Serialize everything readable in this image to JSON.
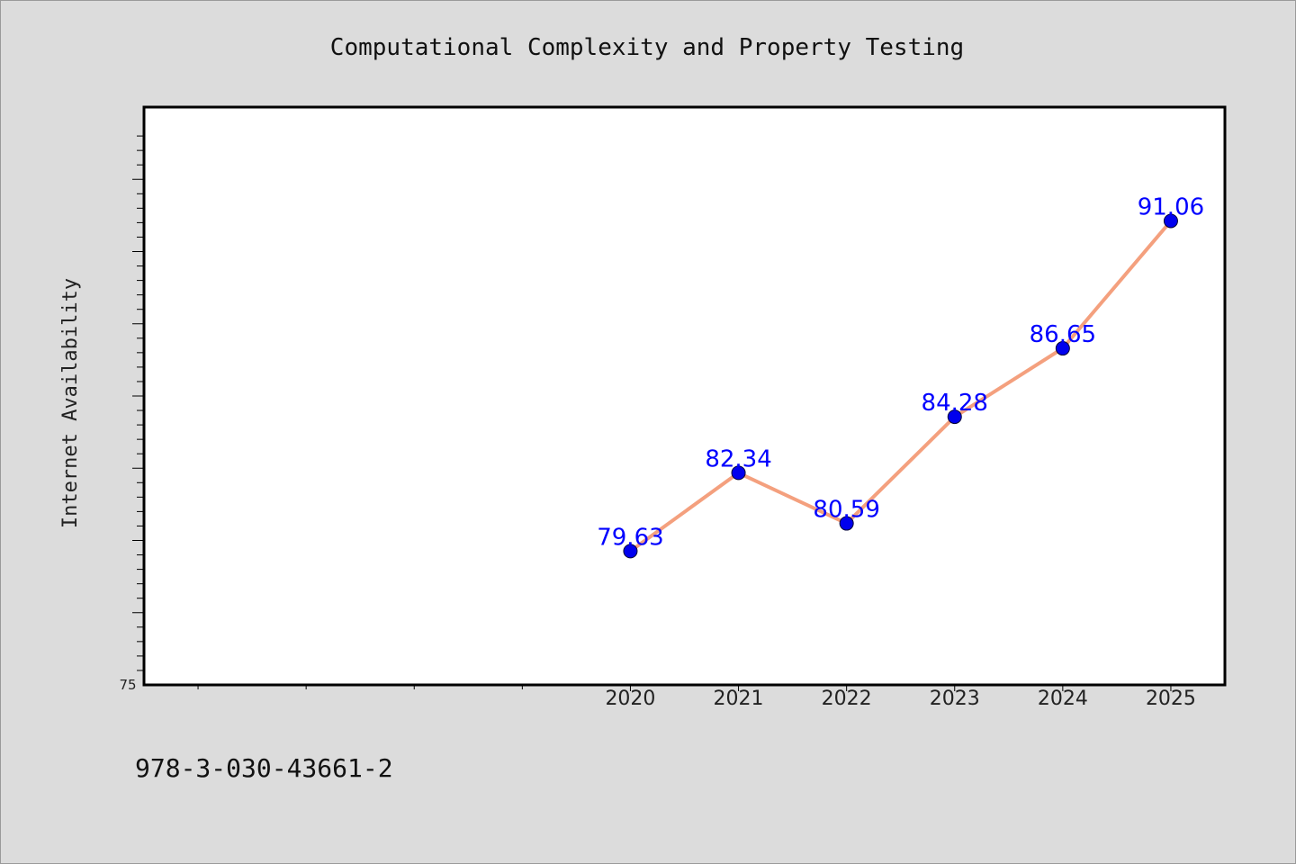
{
  "chart_data": {
    "type": "line",
    "title": "Computational Complexity and Property Testing",
    "xlabel": "",
    "ylabel": "Internet Availability",
    "categories": [
      "2020",
      "2021",
      "2022",
      "2023",
      "2024",
      "2025"
    ],
    "series": [
      {
        "values": [
          79.63,
          82.34,
          80.59,
          84.28,
          86.65,
          91.06
        ]
      }
    ],
    "data_labels": [
      "79.63",
      "82.34",
      "80.59",
      "84.28",
      "86.65",
      "91.06"
    ],
    "ylim": [
      75,
      95
    ],
    "y_tick_labels": [
      "75"
    ],
    "x_slots": 10,
    "grid": false,
    "legend": "none",
    "colors": {
      "line": "#f4a07e",
      "marker": "#0000ee",
      "data_label": "#0000ff",
      "plot_background": "#ffffff",
      "page_background": "#dcdcdc"
    }
  },
  "footer": {
    "isbn": "978-3-030-43661-2"
  }
}
